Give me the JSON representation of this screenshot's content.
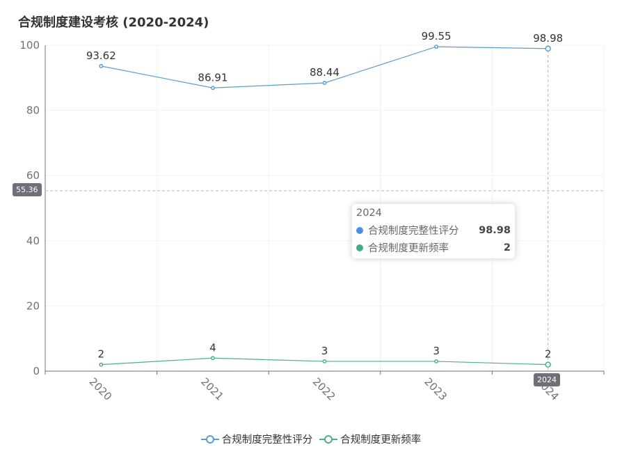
{
  "title": "合规制度建设考核 (2020-2024)",
  "chart_data": {
    "type": "line",
    "title": "合规制度建设考核 (2020-2024)",
    "categories": [
      "2020",
      "2021",
      "2022",
      "2023",
      "2024"
    ],
    "series": [
      {
        "name": "合规制度完整性评分",
        "values": [
          93.62,
          86.91,
          88.44,
          99.55,
          98.98
        ],
        "color": "#5b9bd5"
      },
      {
        "name": "合规制度更新频率",
        "values": [
          2,
          4,
          3,
          3,
          2
        ],
        "color": "#4caf8f"
      }
    ],
    "ylim": [
      0,
      100
    ],
    "yticks": [
      0,
      20,
      40,
      60,
      80,
      100
    ],
    "grid": true,
    "legend_position": "bottom-center"
  },
  "tooltip": {
    "title": "2024",
    "rows": [
      {
        "name": "合规制度完整性评分",
        "value": "98.98",
        "color": "#4f8fe0"
      },
      {
        "name": "合规制度更新频率",
        "value": "2",
        "color": "#3fae82"
      }
    ]
  },
  "axis_pointer": {
    "y_label": "55.36",
    "x_label": "2024"
  }
}
